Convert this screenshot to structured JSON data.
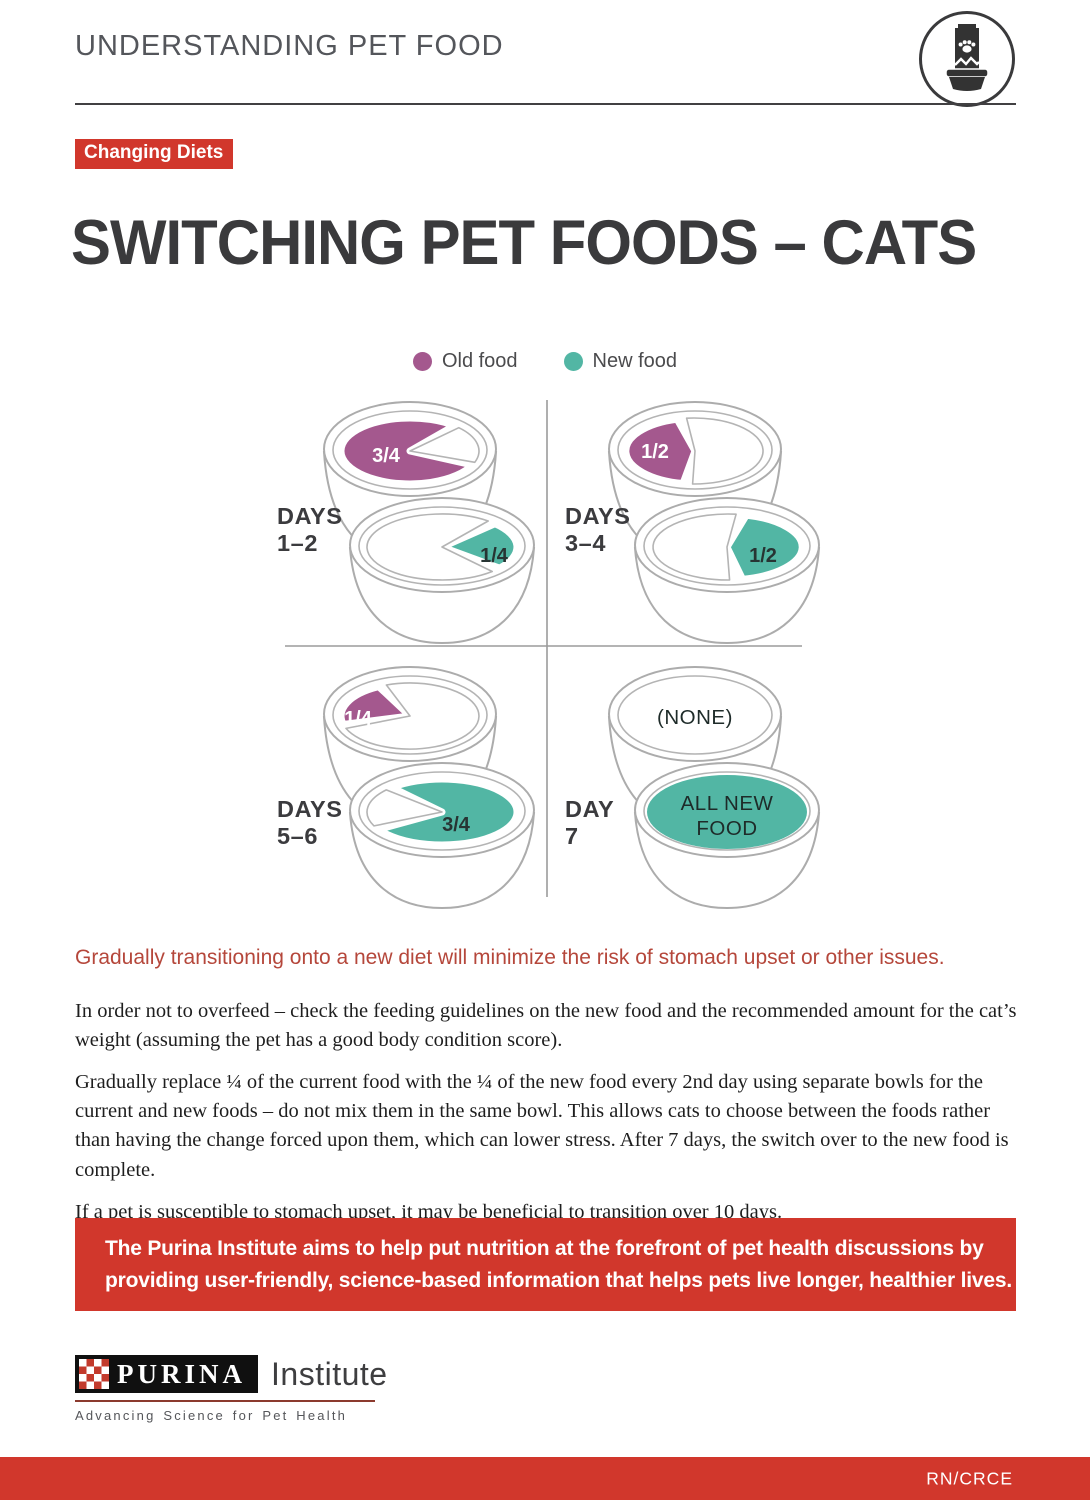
{
  "page": {
    "background": "#ffffff",
    "accent_red": "#D1372C"
  },
  "header": {
    "title": "UNDERSTANDING PET FOOD"
  },
  "tag": {
    "label": "Changing Diets"
  },
  "title": "SWITCHING PET FOODS – CATS",
  "chart_data": {
    "type": "diagram",
    "title": "SWITCHING PET FOODS – CATS",
    "legend": [
      {
        "key": "old",
        "label": "Old food",
        "color": "#A4588E"
      },
      {
        "key": "new",
        "label": "New food",
        "color": "#52B6A4"
      }
    ],
    "schedule": [
      {
        "days": "1–2",
        "old_food": "3/4",
        "new_food": "1/4"
      },
      {
        "days": "3–4",
        "old_food": "1/2",
        "new_food": "1/2"
      },
      {
        "days": "5–6",
        "old_food": "1/4",
        "new_food": "3/4"
      },
      {
        "days": "7",
        "old_food": "(NONE)",
        "new_food": "ALL NEW FOOD"
      }
    ],
    "quadrants": [
      {
        "day_line1": "DAYS",
        "day_line2": "1–2",
        "bowls": [
          {
            "food": "old",
            "fraction": "3/4",
            "label_color": "#ffffff",
            "colored": [
              25,
              310
            ],
            "empty": [
              315,
              20
            ],
            "label_offset": [
              -24,
              4
            ]
          },
          {
            "food": "new",
            "fraction": "1/4",
            "label_color": "#273433",
            "colored": [
              315,
              40
            ],
            "empty": [
              48,
              308
            ],
            "label_offset": [
              52,
              8
            ]
          }
        ]
      },
      {
        "day_line1": "DAYS",
        "day_line2": "3–4",
        "bowls": [
          {
            "food": "old",
            "fraction": "1/2",
            "label_color": "#ffffff",
            "colored": [
              100,
              255
            ],
            "empty": [
              263,
              92
            ],
            "label_offset": [
              -40,
              0
            ]
          },
          {
            "food": "new",
            "fraction": "1/2",
            "label_color": "#273433",
            "colored": [
              285,
              78
            ],
            "empty": [
              88,
              277
            ],
            "label_offset": [
              36,
              8
            ]
          }
        ]
      },
      {
        "day_line1": "DAYS",
        "day_line2": "5–6",
        "bowls": [
          {
            "food": "old",
            "fraction": "1/4",
            "label_color": "#ffffff",
            "colored": [
              165,
              243
            ],
            "empty": [
              250,
              158
            ],
            "label_offset": [
              -52,
              2
            ]
          },
          {
            "food": "new",
            "fraction": "3/4",
            "label_color": "#273433",
            "colored": [
              228,
              148
            ],
            "empty": [
              155,
              222
            ],
            "label_offset": [
              14,
              12
            ]
          }
        ]
      },
      {
        "day_line1": "DAY",
        "day_line2": "7",
        "bowls": [
          {
            "food": "none",
            "center_label": "(NONE)"
          },
          {
            "food": "new",
            "full": true,
            "center_label": "ALL NEW\nFOOD"
          }
        ]
      }
    ]
  },
  "highlight": "Gradually transitioning onto a new diet will minimize the risk of stomach upset or other issues.",
  "paragraphs": [
    "In order not to overfeed – check the feeding guidelines on the new food and the recommended amount for the cat’s weight (assuming the pet has a good body condition score).",
    "Gradually replace ¼ of the current food with the ¼ of the new food every 2nd day using separate bowls for the current and new foods – do not mix them in the same bowl. This allows cats to choose between the foods rather than having the change forced upon them, which can lower stress. After 7 days, the switch over to the new food is complete.",
    "If a pet is susceptible to stomach upset, it may be beneficial to transition over 10 days."
  ],
  "banner": {
    "lines": [
      "The Purina Institute aims to help put nutrition at the forefront of pet health discussions by",
      "providing user-friendly, science-based information that helps pets live longer, healthier lives."
    ]
  },
  "logo": {
    "brand": "PURINA",
    "suffix": "Institute",
    "tagline": "Advancing Science for Pet Health"
  },
  "footer": {
    "code": "RN/CRCE"
  }
}
